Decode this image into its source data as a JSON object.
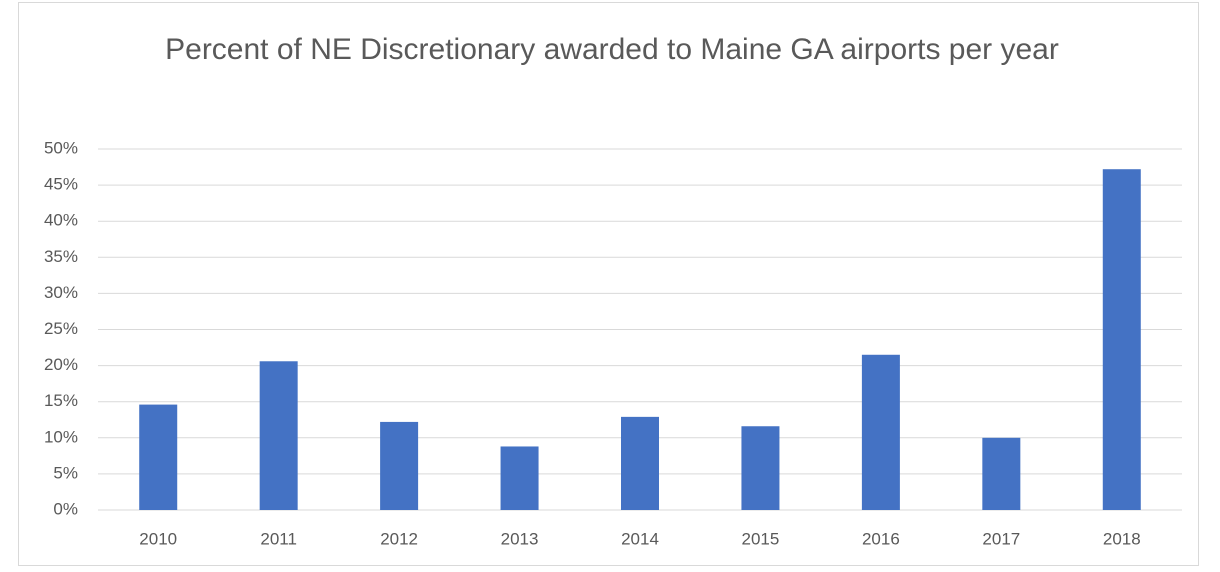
{
  "chart_data": {
    "type": "bar",
    "title": "Percent of NE Discretionary awarded to Maine GA airports per year",
    "categories": [
      "2010",
      "2011",
      "2012",
      "2013",
      "2014",
      "2015",
      "2016",
      "2017",
      "2018"
    ],
    "values": [
      14.6,
      20.6,
      12.2,
      8.8,
      12.9,
      11.6,
      21.5,
      10.0,
      47.2
    ],
    "color": "#4472c4",
    "ylim": [
      0,
      50
    ],
    "yticks": [
      {
        "value": 0,
        "label": "0%"
      },
      {
        "value": 5,
        "label": "5%"
      },
      {
        "value": 10,
        "label": "10%"
      },
      {
        "value": 15,
        "label": "15%"
      },
      {
        "value": 20,
        "label": "20%"
      },
      {
        "value": 25,
        "label": "25%"
      },
      {
        "value": 30,
        "label": "30%"
      },
      {
        "value": 35,
        "label": "35%"
      },
      {
        "value": 40,
        "label": "40%"
      },
      {
        "value": 45,
        "label": "45%"
      },
      {
        "value": 50,
        "label": "50%"
      }
    ],
    "grid": true
  }
}
